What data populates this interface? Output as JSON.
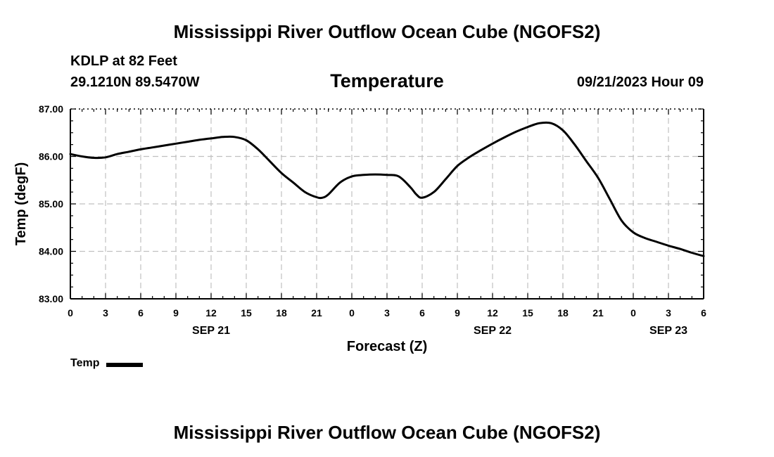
{
  "page": {
    "title_top": "Mississippi River Outflow Ocean Cube (NGOFS2)",
    "title_bottom": "Mississippi River Outflow Ocean Cube (NGOFS2)"
  },
  "header": {
    "station": "KDLP at 82 Feet",
    "coords": "29.1210N  89.5470W",
    "datetime": "09/21/2023 Hour 09"
  },
  "legend": {
    "label": "Temp"
  },
  "colors": {
    "line": "#000000",
    "grid": "#c0c0c0",
    "axis": "#000000"
  },
  "chart_data": {
    "type": "line",
    "title": "Temperature",
    "xlabel": "Forecast (Z)",
    "ylabel": "Temp (degF)",
    "ylim": [
      83.0,
      87.0
    ],
    "xlim": [
      0,
      54
    ],
    "y_ticks": [
      "83.00",
      "84.00",
      "85.00",
      "86.00",
      "87.00"
    ],
    "y_tick_values": [
      83,
      84,
      85,
      86,
      87
    ],
    "x_tick_values": [
      0,
      3,
      6,
      9,
      12,
      15,
      18,
      21,
      24,
      27,
      30,
      33,
      36,
      39,
      42,
      45,
      48,
      51,
      54
    ],
    "x_tick_labels": [
      "0",
      "3",
      "6",
      "9",
      "12",
      "15",
      "18",
      "21",
      "0",
      "3",
      "6",
      "9",
      "12",
      "15",
      "18",
      "21",
      "0",
      "3",
      "6"
    ],
    "date_labels": [
      {
        "text": "SEP 21",
        "x": 12
      },
      {
        "text": "SEP 22",
        "x": 36
      },
      {
        "text": "SEP 23",
        "x": 51
      }
    ],
    "grid": true,
    "series": [
      {
        "name": "Temp",
        "x": [
          0,
          1,
          2,
          3,
          4,
          5,
          6,
          7,
          8,
          9,
          10,
          11,
          12,
          13,
          14,
          15,
          16,
          17,
          18,
          19,
          20,
          21,
          21.5,
          22,
          23,
          24,
          25,
          26,
          27,
          28,
          29,
          29.5,
          30,
          31,
          32,
          33,
          34,
          35,
          36,
          37,
          38,
          39,
          40,
          41,
          42,
          43,
          44,
          45,
          46,
          47,
          48,
          49,
          50,
          51,
          52,
          53,
          54
        ],
        "values": [
          86.05,
          86.0,
          85.97,
          85.98,
          86.05,
          86.1,
          86.15,
          86.19,
          86.23,
          86.27,
          86.31,
          86.35,
          86.38,
          86.41,
          86.41,
          86.34,
          86.15,
          85.9,
          85.65,
          85.45,
          85.25,
          85.14,
          85.13,
          85.2,
          85.45,
          85.58,
          85.61,
          85.62,
          85.61,
          85.58,
          85.35,
          85.2,
          85.13,
          85.25,
          85.52,
          85.8,
          85.98,
          86.13,
          86.27,
          86.4,
          86.52,
          86.62,
          86.7,
          86.7,
          86.55,
          86.25,
          85.9,
          85.55,
          85.1,
          84.65,
          84.4,
          84.28,
          84.2,
          84.12,
          84.05,
          83.97,
          83.9
        ]
      }
    ]
  }
}
